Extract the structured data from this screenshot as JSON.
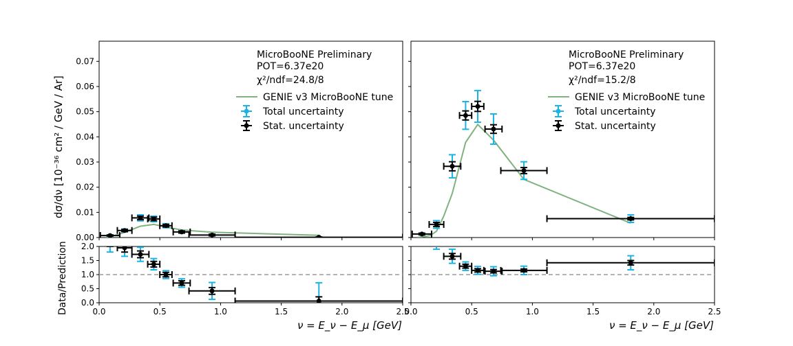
{
  "figure": {
    "ylabel_top": "dσ/dν [10⁻³⁶ cm² / GeV / Ar]",
    "ylabel_bottom": "Data/Prediction",
    "xlabel": "ν = E_ν − E_μ [GeV]",
    "legend": {
      "model": "GENIE v3 MicroBooNE tune",
      "total": "Total uncertainty",
      "stat": "Stat. uncertainty"
    },
    "colors": {
      "model": "#7fb27f",
      "total": "#1ab3e6",
      "stat": "#000000",
      "ref": "#999999"
    }
  },
  "chart_data": [
    {
      "type": "scatter",
      "panel": "top-left",
      "annotation": [
        "MicroBooNE Preliminary",
        "POT=6.37e20",
        "χ²/ndf=24.8/8"
      ],
      "xlim": [
        0,
        2.5
      ],
      "ylim": [
        0,
        0.078
      ],
      "yticks": [
        0.0,
        0.01,
        0.02,
        0.03,
        0.04,
        0.05,
        0.06,
        0.07
      ],
      "ytick_labels": [
        "0.00",
        "0.01",
        "0.02",
        "0.03",
        "0.04",
        "0.05",
        "0.06",
        "0.07"
      ],
      "legend_position": "top-right",
      "data": [
        {
          "x": 0.09,
          "xerr": 0.08,
          "y": 0.0008,
          "err_total": 0.0003,
          "err_stat": 0.0002
        },
        {
          "x": 0.21,
          "xerr": 0.06,
          "y": 0.0028,
          "err_total": 0.0006,
          "err_stat": 0.0004
        },
        {
          "x": 0.34,
          "xerr": 0.07,
          "y": 0.0078,
          "err_total": 0.0012,
          "err_stat": 0.0007
        },
        {
          "x": 0.45,
          "xerr": 0.05,
          "y": 0.0074,
          "err_total": 0.0011,
          "err_stat": 0.0007
        },
        {
          "x": 0.55,
          "xerr": 0.05,
          "y": 0.0047,
          "err_total": 0.0008,
          "err_stat": 0.0005
        },
        {
          "x": 0.68,
          "xerr": 0.07,
          "y": 0.0022,
          "err_total": 0.0005,
          "err_stat": 0.0004
        },
        {
          "x": 0.93,
          "xerr": 0.19,
          "y": 0.001,
          "err_total": 0.0004,
          "err_stat": 0.0003
        },
        {
          "x": 1.81,
          "xerr": 0.69,
          "y": 0.0001,
          "err_total": 0.0002,
          "err_stat": 0.0001
        }
      ],
      "model": {
        "x": [
          0.05,
          0.16,
          0.27,
          0.34,
          0.45,
          0.55,
          0.68,
          0.93,
          1.81
        ],
        "y": [
          0.0,
          0.0012,
          0.0032,
          0.0045,
          0.0052,
          0.0042,
          0.003,
          0.0021,
          0.0009
        ]
      }
    },
    {
      "type": "scatter",
      "panel": "top-right",
      "annotation": [
        "MicroBooNE Preliminary",
        "POT=6.37e20",
        "χ²/ndf=15.2/8"
      ],
      "xlim": [
        0,
        2.5
      ],
      "ylim": [
        0,
        0.078
      ],
      "yticks": [
        0.0,
        0.01,
        0.02,
        0.03,
        0.04,
        0.05,
        0.06,
        0.07
      ],
      "legend_position": "top-right",
      "data": [
        {
          "x": 0.09,
          "xerr": 0.08,
          "y": 0.0014,
          "err_total": 0.0004,
          "err_stat": 0.0003
        },
        {
          "x": 0.21,
          "xerr": 0.06,
          "y": 0.0052,
          "err_total": 0.0015,
          "err_stat": 0.0008
        },
        {
          "x": 0.34,
          "xerr": 0.07,
          "y": 0.0283,
          "err_total": 0.0046,
          "err_stat": 0.0018
        },
        {
          "x": 0.45,
          "xerr": 0.05,
          "y": 0.0485,
          "err_total": 0.0055,
          "err_stat": 0.0018
        },
        {
          "x": 0.55,
          "xerr": 0.05,
          "y": 0.0521,
          "err_total": 0.0063,
          "err_stat": 0.002
        },
        {
          "x": 0.68,
          "xerr": 0.07,
          "y": 0.0431,
          "err_total": 0.006,
          "err_stat": 0.0017
        },
        {
          "x": 0.93,
          "xerr": 0.19,
          "y": 0.0266,
          "err_total": 0.0035,
          "err_stat": 0.0012
        },
        {
          "x": 1.81,
          "xerr": 0.69,
          "y": 0.0075,
          "err_total": 0.0015,
          "err_stat": 0.0005
        }
      ],
      "model": {
        "x": [
          0.05,
          0.16,
          0.21,
          0.27,
          0.34,
          0.45,
          0.55,
          0.68,
          0.93,
          1.81
        ],
        "y": [
          0.0,
          0.0008,
          0.0025,
          0.0085,
          0.0175,
          0.0378,
          0.0449,
          0.0387,
          0.0231,
          0.0057
        ]
      }
    },
    {
      "type": "scatter",
      "panel": "bottom-left",
      "xlim": [
        0,
        2.5
      ],
      "ylim": [
        0,
        2.0
      ],
      "yticks": [
        0.0,
        0.5,
        1.0,
        1.5,
        2.0
      ],
      "ytick_labels": [
        "0.0",
        "0.5",
        "1.0",
        "1.5",
        "2.0"
      ],
      "xticks": [
        0.0,
        0.5,
        1.0,
        1.5,
        2.0,
        2.5
      ],
      "xtick_labels": [
        "0.0",
        "0.5",
        "1.0",
        "1.5",
        "2.0",
        "2.5"
      ],
      "reference_line": 1.0,
      "data": [
        {
          "x": 0.09,
          "xerr": 0.08,
          "y": 2.25,
          "err_total": 0.45,
          "err_stat": 0.25
        },
        {
          "x": 0.21,
          "xerr": 0.06,
          "y": 1.95,
          "err_total": 0.3,
          "err_stat": 0.15
        },
        {
          "x": 0.34,
          "xerr": 0.07,
          "y": 1.72,
          "err_total": 0.25,
          "err_stat": 0.12
        },
        {
          "x": 0.45,
          "xerr": 0.05,
          "y": 1.37,
          "err_total": 0.2,
          "err_stat": 0.1
        },
        {
          "x": 0.55,
          "xerr": 0.05,
          "y": 1.0,
          "err_total": 0.14,
          "err_stat": 0.08
        },
        {
          "x": 0.68,
          "xerr": 0.07,
          "y": 0.7,
          "err_total": 0.15,
          "err_stat": 0.08
        },
        {
          "x": 0.93,
          "xerr": 0.19,
          "y": 0.42,
          "err_total": 0.3,
          "err_stat": 0.12
        },
        {
          "x": 1.81,
          "xerr": 0.69,
          "y": 0.06,
          "err_total": 0.65,
          "err_stat": 0.15
        }
      ]
    },
    {
      "type": "scatter",
      "panel": "bottom-right",
      "xlim": [
        0,
        2.5
      ],
      "ylim": [
        0,
        2.0
      ],
      "yticks": [
        0.0,
        0.5,
        1.0,
        1.5,
        2.0
      ],
      "xticks": [
        0.0,
        0.5,
        1.0,
        1.5,
        2.0,
        2.5
      ],
      "reference_line": 1.0,
      "data": [
        {
          "x": 0.21,
          "xerr": 0.06,
          "y": 2.25,
          "err_total": 0.35,
          "err_stat": 0.15
        },
        {
          "x": 0.34,
          "xerr": 0.07,
          "y": 1.65,
          "err_total": 0.25,
          "err_stat": 0.1
        },
        {
          "x": 0.45,
          "xerr": 0.05,
          "y": 1.3,
          "err_total": 0.15,
          "err_stat": 0.07
        },
        {
          "x": 0.55,
          "xerr": 0.05,
          "y": 1.15,
          "err_total": 0.14,
          "err_stat": 0.06
        },
        {
          "x": 0.68,
          "xerr": 0.07,
          "y": 1.12,
          "err_total": 0.16,
          "err_stat": 0.06
        },
        {
          "x": 0.93,
          "xerr": 0.19,
          "y": 1.15,
          "err_total": 0.15,
          "err_stat": 0.05
        },
        {
          "x": 1.81,
          "xerr": 0.69,
          "y": 1.42,
          "err_total": 0.25,
          "err_stat": 0.08
        }
      ]
    }
  ]
}
